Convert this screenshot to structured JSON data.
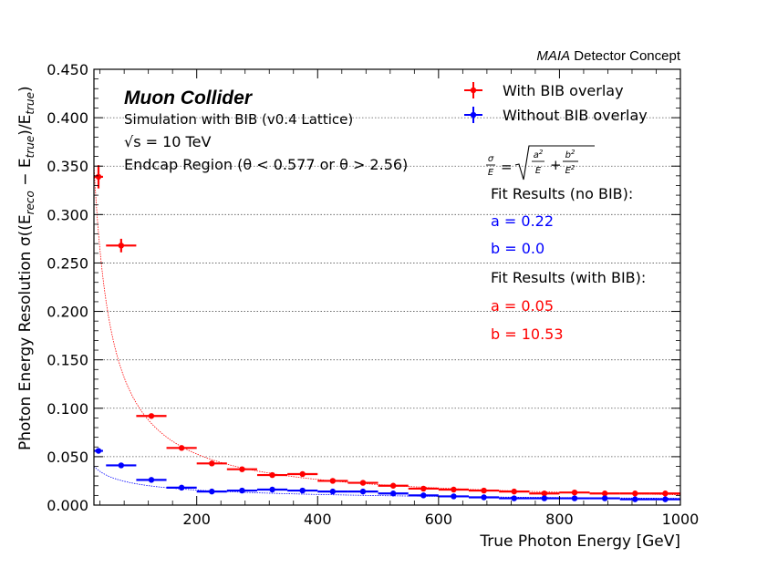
{
  "chart_data": {
    "type": "scatter",
    "detector_label_italic": "MAIA",
    "detector_label_rest": "Detector Concept",
    "experiment_title": "Muon Collider",
    "annotation_lines": [
      "Simulation with BIB (v0.4 Lattice)",
      "√s = 10 TeV",
      "Endcap Region (θ < 0.577 or θ > 2.56)"
    ],
    "xlabel": "True Photon Energy [GeV]",
    "ylabel": "Photon Energy Resolution σ((E_reco − E_true)/E_true)",
    "xlim": [
      30,
      1000
    ],
    "ylim": [
      0,
      0.45
    ],
    "x_ticks": [
      200,
      400,
      600,
      800,
      1000
    ],
    "y_ticks": [
      "0.000",
      "0.050",
      "0.100",
      "0.150",
      "0.200",
      "0.250",
      "0.300",
      "0.350",
      "0.400",
      "0.450"
    ],
    "grid": "horizontal dotted",
    "legend_position": "top-right",
    "fit_formula": "σ/E = √(a²/E + b²/E²)",
    "fit_results": [
      {
        "header": "Fit Results (no BIB):",
        "a": "a = 0.22",
        "b": "b = 0.0",
        "color": "#0000ff"
      },
      {
        "header": "Fit Results (with BIB):",
        "a": "a = 0.05",
        "b": "b = 10.53",
        "color": "#ff0000"
      }
    ],
    "series": [
      {
        "name": "With BIB overlay",
        "color": "#ff0000",
        "fit": {
          "a": 0.05,
          "b": 10.53
        },
        "x": [
          37.5,
          75,
          125,
          175,
          225,
          275,
          325,
          375,
          425,
          475,
          525,
          575,
          625,
          675,
          725,
          775,
          825,
          875,
          925,
          975
        ],
        "xerr": [
          7.5,
          25,
          25,
          25,
          25,
          25,
          25,
          25,
          25,
          25,
          25,
          25,
          25,
          25,
          25,
          25,
          25,
          25,
          25,
          25
        ],
        "y": [
          0.339,
          0.268,
          0.092,
          0.059,
          0.043,
          0.037,
          0.031,
          0.032,
          0.025,
          0.023,
          0.02,
          0.017,
          0.016,
          0.015,
          0.014,
          0.012,
          0.013,
          0.012,
          0.012,
          0.012
        ],
        "yerr": [
          0.012,
          0.007,
          0.002,
          0.002,
          0.0015,
          0.0015,
          0.001,
          0.001,
          0.001,
          0.001,
          0.001,
          0.001,
          0.001,
          0.001,
          0.001,
          0.001,
          0.001,
          0.001,
          0.001,
          0.001
        ]
      },
      {
        "name": "Without BIB overlay",
        "color": "#0000ff",
        "fit": {
          "a": 0.22,
          "b": 0.0
        },
        "x": [
          37.5,
          75,
          125,
          175,
          225,
          275,
          325,
          375,
          425,
          475,
          525,
          575,
          625,
          675,
          725,
          775,
          825,
          875,
          925,
          975
        ],
        "xerr": [
          7.5,
          25,
          25,
          25,
          25,
          25,
          25,
          25,
          25,
          25,
          25,
          25,
          25,
          25,
          25,
          25,
          25,
          25,
          25,
          25
        ],
        "y": [
          0.056,
          0.041,
          0.026,
          0.018,
          0.014,
          0.015,
          0.016,
          0.015,
          0.014,
          0.014,
          0.012,
          0.01,
          0.009,
          0.008,
          0.007,
          0.007,
          0.007,
          0.007,
          0.006,
          0.006
        ],
        "yerr": [
          0.002,
          0.001,
          0.001,
          0.001,
          0.001,
          0.001,
          0.001,
          0.001,
          0.001,
          0.001,
          0.001,
          0.001,
          0.001,
          0.001,
          0.001,
          0.001,
          0.001,
          0.001,
          0.001,
          0.001
        ]
      }
    ]
  }
}
